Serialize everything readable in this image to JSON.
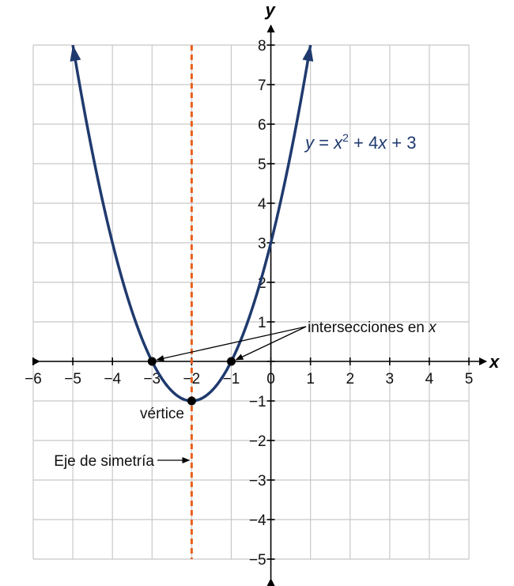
{
  "chart_data": {
    "type": "line",
    "title": "",
    "xlabel": "x",
    "ylabel": "y",
    "xlim": [
      -6,
      5
    ],
    "ylim": [
      -5,
      8
    ],
    "grid": true,
    "x_tick_labels": [
      "−6",
      "−5",
      "−4",
      "−3",
      "−2",
      "−1",
      "0",
      "1",
      "2",
      "3",
      "4",
      "5"
    ],
    "y_tick_labels": [
      "8",
      "7",
      "6",
      "5",
      "4",
      "3",
      "2",
      "1",
      "−1",
      "−2",
      "−3",
      "−4",
      "−5"
    ],
    "series": [
      {
        "equation": "y = x² + 4x + 3",
        "color": "#1f3a6e",
        "x": [
          -5,
          -4.5,
          -4,
          -3.5,
          -3,
          -2.5,
          -2,
          -1.5,
          -1,
          -0.5,
          0,
          0.5,
          1
        ],
        "y": [
          8,
          5.25,
          3,
          1.25,
          0,
          -0.75,
          -1,
          -0.75,
          0,
          1.25,
          3,
          5.25,
          8
        ]
      }
    ],
    "key_points": [
      {
        "x": -3,
        "y": 0
      },
      {
        "x": -1,
        "y": 0
      },
      {
        "x": -2,
        "y": -1
      }
    ],
    "axis_of_symmetry": {
      "x": -2,
      "color": "#e8601c"
    },
    "annotations": {
      "equation": {
        "y": "y",
        "eq1": " = ",
        "x": "x",
        "exp": "2",
        "eq2": " + 4",
        "x2": "x",
        "eq3": " + 3"
      },
      "intercepts": {
        "text": "intersecciones en ",
        "var": "x"
      },
      "vertex": "vértice",
      "symmetry": "Eje de simetría"
    }
  }
}
